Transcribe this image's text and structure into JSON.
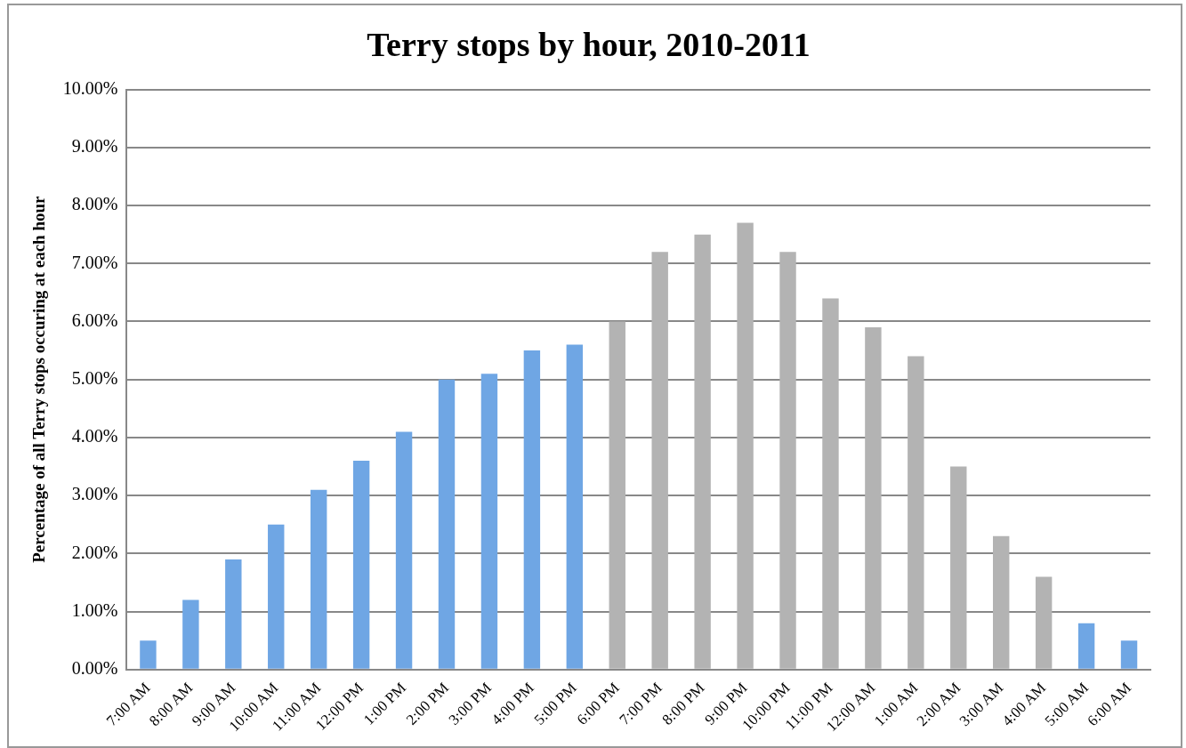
{
  "chart_data": {
    "type": "bar",
    "title": "Terry stops by hour, 2010-2011",
    "ylabel": "Percentage of all Terry stops occuring at each hour",
    "categories": [
      "7:00 AM",
      "8:00 AM",
      "9:00 AM",
      "10:00 AM",
      "11:00 AM",
      "12:00 PM",
      "1:00 PM",
      "2:00 PM",
      "3:00 PM",
      "4:00 PM",
      "5:00 PM",
      "6:00 PM",
      "7:00 PM",
      "8:00 PM",
      "9:00 PM",
      "10:00 PM",
      "11:00 PM",
      "12:00 AM",
      "1:00 AM",
      "2:00 AM",
      "3:00 AM",
      "4:00 AM",
      "5:00 AM",
      "6:00 AM"
    ],
    "values": [
      0.5,
      1.2,
      1.9,
      2.5,
      3.1,
      3.6,
      4.1,
      5.0,
      5.1,
      5.5,
      5.6,
      6.0,
      7.2,
      7.5,
      7.7,
      7.2,
      6.4,
      5.9,
      5.4,
      3.5,
      2.3,
      1.6,
      0.8,
      0.5
    ],
    "colors": [
      "#6fa6e4",
      "#6fa6e4",
      "#6fa6e4",
      "#6fa6e4",
      "#6fa6e4",
      "#6fa6e4",
      "#6fa6e4",
      "#6fa6e4",
      "#6fa6e4",
      "#6fa6e4",
      "#6fa6e4",
      "#b3b3b3",
      "#b3b3b3",
      "#b3b3b3",
      "#b3b3b3",
      "#b3b3b3",
      "#b3b3b3",
      "#b3b3b3",
      "#b3b3b3",
      "#b3b3b3",
      "#b3b3b3",
      "#b3b3b3",
      "#6fa6e4",
      "#6fa6e4"
    ],
    "ylim": [
      0,
      10
    ],
    "yticks": [
      {
        "value": 0,
        "label": "0.00%"
      },
      {
        "value": 1,
        "label": "1.00%"
      },
      {
        "value": 2,
        "label": "2.00%"
      },
      {
        "value": 3,
        "label": "3.00%"
      },
      {
        "value": 4,
        "label": "4.00%"
      },
      {
        "value": 5,
        "label": "5.00%"
      },
      {
        "value": 6,
        "label": "6.00%"
      },
      {
        "value": 7,
        "label": "7.00%"
      },
      {
        "value": 8,
        "label": "8.00%"
      },
      {
        "value": 9,
        "label": "9.00%"
      },
      {
        "value": 10,
        "label": "10.00%"
      }
    ],
    "grid": "y",
    "legend": false
  }
}
